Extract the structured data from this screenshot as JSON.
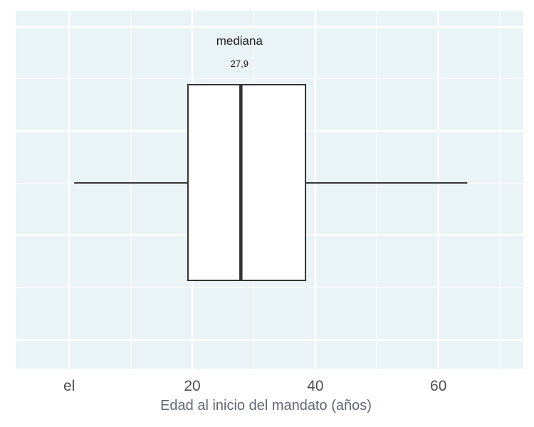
{
  "chart_data": {
    "type": "boxplot",
    "orientation": "horizontal",
    "xlabel": "Edad al inicio del mandato (años)",
    "x_ticks": [
      {
        "value": 0,
        "label": "el"
      },
      {
        "value": 20,
        "label": "20"
      },
      {
        "value": 40,
        "label": "40"
      },
      {
        "value": 60,
        "label": "60"
      }
    ],
    "xlim": [
      -8.7,
      73.8
    ],
    "grid": true,
    "box": {
      "whisker_low": 0.8,
      "q1": 19.3,
      "median": 27.9,
      "q3": 38.4,
      "whisker_high": 64.7
    },
    "annotation": {
      "title": "mediana",
      "value_label": "27,9"
    },
    "colors": {
      "panel_background": "#eaf3f5",
      "grid_line": "#ffffff",
      "box_fill": "#ffffff",
      "box_stroke": "#333333"
    }
  }
}
